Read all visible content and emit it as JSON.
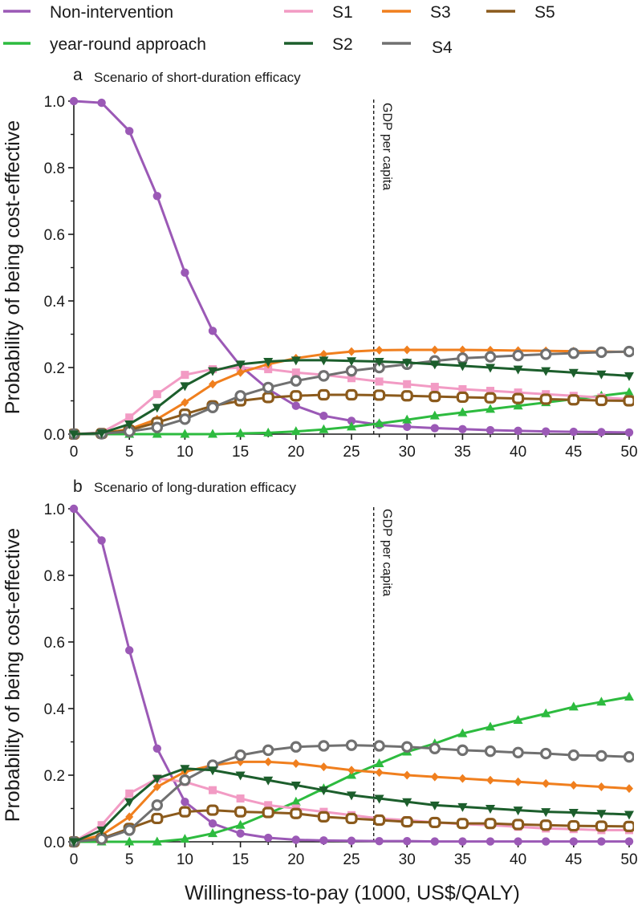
{
  "legend": [
    {
      "key": "nonint",
      "label": "Non-intervention"
    },
    {
      "key": "yearround",
      "label": "year-round approach"
    },
    {
      "key": "s1",
      "label": "S1"
    },
    {
      "key": "s2",
      "label": "S2"
    },
    {
      "key": "s3",
      "label": "S3"
    },
    {
      "key": "s4",
      "label": "S4"
    },
    {
      "key": "s5",
      "label": "S5"
    }
  ],
  "series_style": {
    "nonint": {
      "color": "#9b59b6",
      "marker": "circle"
    },
    "yearround": {
      "color": "#2dbb3f",
      "marker": "triangle-up"
    },
    "s1": {
      "color": "#f29bc4",
      "marker": "square"
    },
    "s2": {
      "color": "#1c5e2c",
      "marker": "triangle-down"
    },
    "s3": {
      "color": "#f07f1e",
      "marker": "diamond"
    },
    "s4": {
      "color": "#707070",
      "marker": "ring"
    },
    "s5": {
      "color": "#8b5a1c",
      "marker": "ring-square"
    }
  },
  "chart_data": [
    {
      "type": "line",
      "panel_letter": "a",
      "title": "Scenario of short-duration efficacy",
      "xlabel": "Willingness-to-pay (1000, US$/QALY)",
      "ylabel": "Probability of being cost-effective",
      "xlim": [
        0,
        50
      ],
      "ylim": [
        0,
        1.0
      ],
      "xticks": [
        0,
        5,
        10,
        15,
        20,
        25,
        30,
        35,
        40,
        45,
        50
      ],
      "yticks": [
        0.0,
        0.2,
        0.4,
        0.6,
        0.8,
        1.0
      ],
      "x": [
        0,
        2.5,
        5,
        7.5,
        10,
        12.5,
        15,
        17.5,
        20,
        22.5,
        25,
        27.5,
        30,
        32.5,
        35,
        37.5,
        40,
        42.5,
        45,
        47.5,
        50
      ],
      "reference_line": {
        "x": 27,
        "label": "GDP per capita"
      },
      "series": [
        {
          "key": "nonint",
          "name": "Non-intervention",
          "values": [
            1.0,
            0.995,
            0.91,
            0.715,
            0.485,
            0.31,
            0.205,
            0.135,
            0.085,
            0.055,
            0.04,
            0.028,
            0.022,
            0.018,
            0.015,
            0.012,
            0.01,
            0.008,
            0.007,
            0.006,
            0.005
          ]
        },
        {
          "key": "yearround",
          "name": "year-round approach",
          "values": [
            0,
            0,
            0,
            0,
            0,
            0,
            0.002,
            0.004,
            0.008,
            0.014,
            0.022,
            0.032,
            0.043,
            0.055,
            0.065,
            0.075,
            0.085,
            0.095,
            0.105,
            0.115,
            0.125
          ]
        },
        {
          "key": "s1",
          "name": "S1",
          "values": [
            0,
            0.005,
            0.05,
            0.12,
            0.178,
            0.195,
            0.2,
            0.195,
            0.185,
            0.178,
            0.168,
            0.158,
            0.15,
            0.142,
            0.135,
            0.13,
            0.125,
            0.12,
            0.115,
            0.11,
            0.105
          ]
        },
        {
          "key": "s2",
          "name": "S2",
          "values": [
            0,
            0.003,
            0.03,
            0.08,
            0.145,
            0.19,
            0.21,
            0.218,
            0.222,
            0.222,
            0.22,
            0.218,
            0.215,
            0.21,
            0.205,
            0.2,
            0.195,
            0.19,
            0.185,
            0.18,
            0.175
          ]
        },
        {
          "key": "s3",
          "name": "S3",
          "values": [
            0,
            0.002,
            0.015,
            0.045,
            0.095,
            0.15,
            0.185,
            0.21,
            0.228,
            0.24,
            0.248,
            0.252,
            0.253,
            0.253,
            0.253,
            0.252,
            0.251,
            0.25,
            0.249,
            0.248,
            0.247
          ]
        },
        {
          "key": "s4",
          "name": "S4",
          "values": [
            0,
            0.001,
            0.008,
            0.02,
            0.045,
            0.08,
            0.115,
            0.14,
            0.16,
            0.175,
            0.19,
            0.2,
            0.21,
            0.22,
            0.228,
            0.232,
            0.236,
            0.24,
            0.243,
            0.246,
            0.248
          ]
        },
        {
          "key": "s5",
          "name": "S5",
          "values": [
            0,
            0.002,
            0.012,
            0.035,
            0.06,
            0.085,
            0.1,
            0.11,
            0.115,
            0.118,
            0.118,
            0.117,
            0.115,
            0.113,
            0.111,
            0.109,
            0.107,
            0.105,
            0.103,
            0.101,
            0.1
          ]
        }
      ]
    },
    {
      "type": "line",
      "panel_letter": "b",
      "title": "Scenario of long-duration efficacy",
      "xlabel": "Willingness-to-pay (1000, US$/QALY)",
      "ylabel": "Probability of being cost-effective",
      "xlim": [
        0,
        50
      ],
      "ylim": [
        0,
        1.0
      ],
      "xticks": [
        0,
        5,
        10,
        15,
        20,
        25,
        30,
        35,
        40,
        45,
        50
      ],
      "yticks": [
        0.0,
        0.2,
        0.4,
        0.6,
        0.8,
        1.0
      ],
      "x": [
        0,
        2.5,
        5,
        7.5,
        10,
        12.5,
        15,
        17.5,
        20,
        22.5,
        25,
        27.5,
        30,
        32.5,
        35,
        37.5,
        40,
        42.5,
        45,
        47.5,
        50
      ],
      "reference_line": {
        "x": 27,
        "label": "GDP per capita"
      },
      "series": [
        {
          "key": "nonint",
          "name": "Non-intervention",
          "values": [
            1.0,
            0.905,
            0.575,
            0.28,
            0.12,
            0.055,
            0.025,
            0.012,
            0.006,
            0.004,
            0.003,
            0.002,
            0.002,
            0.001,
            0.001,
            0.001,
            0.001,
            0.001,
            0.001,
            0.001,
            0.001
          ]
        },
        {
          "key": "yearround",
          "name": "year-round approach",
          "values": [
            0,
            0,
            0,
            0,
            0.008,
            0.025,
            0.05,
            0.085,
            0.12,
            0.16,
            0.2,
            0.235,
            0.27,
            0.295,
            0.325,
            0.345,
            0.365,
            0.385,
            0.405,
            0.42,
            0.435
          ]
        },
        {
          "key": "s1",
          "name": "S1",
          "values": [
            0,
            0.05,
            0.145,
            0.19,
            0.18,
            0.155,
            0.13,
            0.11,
            0.1,
            0.09,
            0.08,
            0.07,
            0.065,
            0.058,
            0.053,
            0.05,
            0.045,
            0.04,
            0.038,
            0.035,
            0.035
          ]
        },
        {
          "key": "s2",
          "name": "S2",
          "values": [
            0,
            0.035,
            0.12,
            0.19,
            0.22,
            0.215,
            0.2,
            0.185,
            0.17,
            0.155,
            0.14,
            0.13,
            0.12,
            0.11,
            0.105,
            0.1,
            0.095,
            0.09,
            0.088,
            0.085,
            0.082
          ]
        },
        {
          "key": "s3",
          "name": "S3",
          "values": [
            0,
            0.02,
            0.075,
            0.165,
            0.21,
            0.23,
            0.24,
            0.24,
            0.235,
            0.225,
            0.215,
            0.208,
            0.2,
            0.195,
            0.19,
            0.185,
            0.18,
            0.175,
            0.17,
            0.165,
            0.16
          ]
        },
        {
          "key": "s4",
          "name": "S4",
          "values": [
            0,
            0.008,
            0.035,
            0.11,
            0.185,
            0.23,
            0.26,
            0.275,
            0.285,
            0.288,
            0.29,
            0.288,
            0.285,
            0.28,
            0.275,
            0.272,
            0.268,
            0.265,
            0.26,
            0.258,
            0.255
          ]
        },
        {
          "key": "s5",
          "name": "S5",
          "values": [
            0,
            0.01,
            0.04,
            0.07,
            0.09,
            0.095,
            0.09,
            0.088,
            0.085,
            0.075,
            0.07,
            0.065,
            0.06,
            0.058,
            0.055,
            0.055,
            0.052,
            0.05,
            0.048,
            0.047,
            0.046
          ]
        }
      ]
    }
  ]
}
